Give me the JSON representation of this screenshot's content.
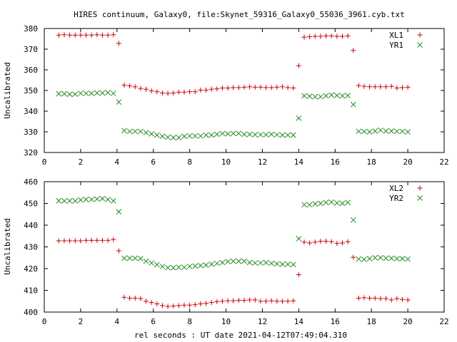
{
  "title": "HIRES continuum, Galaxy0, file:Skynet_59316_Galaxy0_55036_3961.cyb.txt",
  "xlabel": "rel seconds : UT date 2021-04-12T07:49:04.310",
  "colors": {
    "series1": "#cc0000",
    "series2": "#228b22",
    "axis": "#000000"
  },
  "chart_data": [
    {
      "type": "scatter",
      "ylabel": "Uncalibrated",
      "xlim": [
        0,
        22
      ],
      "ylim": [
        320,
        380
      ],
      "x_ticks": [
        0,
        2,
        4,
        6,
        8,
        10,
        12,
        14,
        16,
        18,
        20,
        22
      ],
      "y_ticks": [
        320,
        330,
        340,
        350,
        360,
        370,
        380
      ],
      "legend_position": "top-right",
      "x": [
        0.8,
        1.1,
        1.4,
        1.7,
        2.0,
        2.3,
        2.6,
        2.9,
        3.2,
        3.5,
        3.8,
        4.1,
        4.4,
        4.7,
        5.0,
        5.3,
        5.6,
        5.9,
        6.2,
        6.5,
        6.8,
        7.1,
        7.4,
        7.7,
        8.0,
        8.3,
        8.6,
        8.9,
        9.2,
        9.5,
        9.8,
        10.1,
        10.4,
        10.7,
        11.0,
        11.3,
        11.6,
        11.9,
        12.2,
        12.5,
        12.8,
        13.1,
        13.4,
        13.7,
        14.0,
        14.3,
        14.6,
        14.9,
        15.2,
        15.5,
        15.8,
        16.1,
        16.4,
        16.7,
        17.0,
        17.3,
        17.6,
        17.9,
        18.2,
        18.5,
        18.8,
        19.1,
        19.4,
        19.7,
        20.0
      ],
      "series": [
        {
          "name": "XL1",
          "marker": "plus",
          "values": [
            376.8,
            377.0,
            376.8,
            376.8,
            376.8,
            376.8,
            376.8,
            377.0,
            376.8,
            376.8,
            377.0,
            372.8,
            352.6,
            352.2,
            351.8,
            351.0,
            350.6,
            349.8,
            349.4,
            348.8,
            348.6,
            348.8,
            349.2,
            349.2,
            349.4,
            349.4,
            350.2,
            350.2,
            350.6,
            350.8,
            351.2,
            351.2,
            351.4,
            351.4,
            351.6,
            351.8,
            351.6,
            351.6,
            351.4,
            351.4,
            351.6,
            351.8,
            351.4,
            351.2,
            362.0,
            375.8,
            376.0,
            376.2,
            376.2,
            376.4,
            376.4,
            376.2,
            376.2,
            376.4,
            369.4,
            352.4,
            352.0,
            351.8,
            351.8,
            351.8,
            351.8,
            352.0,
            351.2,
            351.4,
            351.6
          ]
        },
        {
          "name": "YR1",
          "marker": "cross",
          "values": [
            348.4,
            348.4,
            348.2,
            348.2,
            348.6,
            348.6,
            348.6,
            348.8,
            348.8,
            349.0,
            348.6,
            344.4,
            330.6,
            330.2,
            330.2,
            330.2,
            329.6,
            329.0,
            328.4,
            327.8,
            327.4,
            327.2,
            327.2,
            327.8,
            328.0,
            328.0,
            328.0,
            328.4,
            328.4,
            328.8,
            329.2,
            329.0,
            329.2,
            329.2,
            328.8,
            328.8,
            328.6,
            328.6,
            328.6,
            328.8,
            328.6,
            328.4,
            328.4,
            328.4,
            336.6,
            347.4,
            347.2,
            347.0,
            347.0,
            347.4,
            347.8,
            347.6,
            347.4,
            347.6,
            343.2,
            330.2,
            330.2,
            330.0,
            330.4,
            330.8,
            330.4,
            330.4,
            330.2,
            330.2,
            330.0
          ]
        }
      ]
    },
    {
      "type": "scatter",
      "ylabel": "Uncalibrated",
      "xlim": [
        0,
        22
      ],
      "ylim": [
        400,
        460
      ],
      "x_ticks": [
        0,
        2,
        4,
        6,
        8,
        10,
        12,
        14,
        16,
        18,
        20,
        22
      ],
      "y_ticks": [
        400,
        410,
        420,
        430,
        440,
        450,
        460
      ],
      "legend_position": "top-right",
      "x": [
        0.8,
        1.1,
        1.4,
        1.7,
        2.0,
        2.3,
        2.6,
        2.9,
        3.2,
        3.5,
        3.8,
        4.1,
        4.4,
        4.7,
        5.0,
        5.3,
        5.6,
        5.9,
        6.2,
        6.5,
        6.8,
        7.1,
        7.4,
        7.7,
        8.0,
        8.3,
        8.6,
        8.9,
        9.2,
        9.5,
        9.8,
        10.1,
        10.4,
        10.7,
        11.0,
        11.3,
        11.6,
        11.9,
        12.2,
        12.5,
        12.8,
        13.1,
        13.4,
        13.7,
        14.0,
        14.3,
        14.6,
        14.9,
        15.2,
        15.5,
        15.8,
        16.1,
        16.4,
        16.7,
        17.0,
        17.3,
        17.6,
        17.9,
        18.2,
        18.5,
        18.8,
        19.1,
        19.4,
        19.7,
        20.0
      ],
      "series": [
        {
          "name": "XL2",
          "marker": "plus",
          "values": [
            432.8,
            432.8,
            432.8,
            432.8,
            432.8,
            433.0,
            433.0,
            433.0,
            433.0,
            433.0,
            433.4,
            428.2,
            406.8,
            406.4,
            406.4,
            406.2,
            405.0,
            404.4,
            403.8,
            403.0,
            402.6,
            402.8,
            403.0,
            403.2,
            403.2,
            403.4,
            403.8,
            404.0,
            404.4,
            404.8,
            405.0,
            405.2,
            405.2,
            405.4,
            405.4,
            405.6,
            405.6,
            405.0,
            405.0,
            405.2,
            405.0,
            405.0,
            405.0,
            405.2,
            417.2,
            432.2,
            431.8,
            432.2,
            432.6,
            432.6,
            432.4,
            431.6,
            431.8,
            432.4,
            425.2,
            406.4,
            406.6,
            406.4,
            406.4,
            406.2,
            406.2,
            405.6,
            406.2,
            405.8,
            405.6
          ]
        },
        {
          "name": "YR2",
          "marker": "cross",
          "values": [
            451.2,
            451.2,
            451.2,
            451.2,
            451.6,
            451.8,
            451.8,
            452.0,
            452.2,
            451.8,
            451.2,
            446.2,
            424.8,
            424.8,
            424.8,
            424.6,
            423.4,
            422.6,
            421.8,
            421.0,
            420.4,
            420.4,
            420.6,
            420.6,
            421.0,
            421.2,
            421.4,
            421.6,
            422.0,
            422.4,
            422.8,
            423.2,
            423.4,
            423.4,
            423.4,
            422.8,
            422.6,
            422.6,
            422.8,
            422.4,
            422.2,
            422.0,
            422.0,
            421.8,
            433.8,
            449.4,
            449.4,
            449.8,
            450.0,
            450.4,
            450.6,
            450.2,
            450.0,
            450.4,
            442.4,
            424.4,
            424.2,
            424.6,
            425.0,
            425.0,
            424.8,
            424.8,
            424.6,
            424.6,
            424.4
          ]
        }
      ]
    }
  ]
}
